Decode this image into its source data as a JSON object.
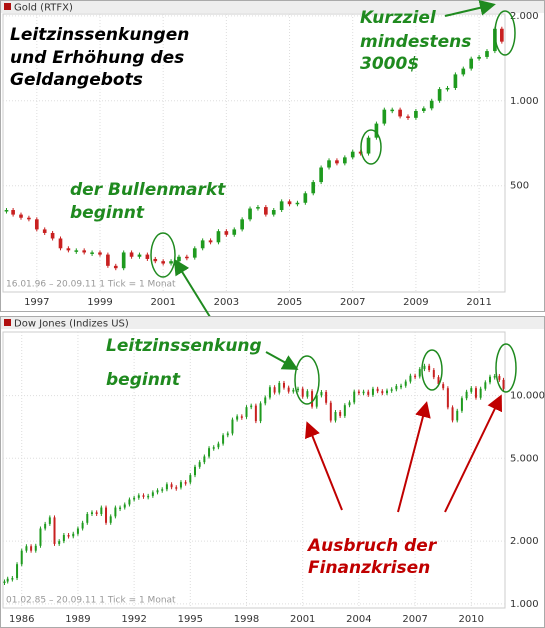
{
  "chart_data": [
    {
      "type": "candlestick",
      "title": "Gold (RTFX)",
      "range_label": "16.01.96 – 20.09.11   1 Tick = 1 Monat",
      "log_y": true,
      "grid": true,
      "up_color": "#1e9a1e",
      "down_color": "#c82020",
      "xlim": [
        1995.93,
        2011.82
      ],
      "xticks": [
        1997,
        1999,
        2001,
        2003,
        2005,
        2007,
        2009,
        2011
      ],
      "ylim": [
        210,
        2030
      ],
      "yticks": [
        {
          "value": 2000,
          "label": "2.000"
        },
        {
          "value": 1000,
          "label": "1.000"
        },
        500
      ],
      "x": [
        1996.04,
        1996.25,
        1996.5,
        1996.75,
        1997,
        1997.25,
        1997.5,
        1997.75,
        1998,
        1998.25,
        1998.5,
        1998.75,
        1999,
        1999.25,
        1999.5,
        1999.75,
        2000,
        2000.25,
        2000.5,
        2000.75,
        2001,
        2001.25,
        2001.5,
        2001.75,
        2002,
        2002.25,
        2002.5,
        2002.75,
        2003,
        2003.25,
        2003.5,
        2003.75,
        2004,
        2004.25,
        2004.5,
        2004.75,
        2005,
        2005.25,
        2005.5,
        2005.75,
        2006,
        2006.25,
        2006.5,
        2006.75,
        2007,
        2007.25,
        2007.5,
        2007.75,
        2008,
        2008.25,
        2008.5,
        2008.75,
        2009,
        2009.25,
        2009.5,
        2009.75,
        2010,
        2010.25,
        2010.5,
        2010.75,
        2011,
        2011.25,
        2011.5,
        2011.72
      ],
      "values": [
        410,
        395,
        385,
        380,
        350,
        340,
        325,
        300,
        295,
        295,
        290,
        290,
        285,
        260,
        255,
        290,
        280,
        285,
        275,
        270,
        265,
        270,
        280,
        278,
        300,
        320,
        315,
        345,
        335,
        350,
        380,
        415,
        420,
        395,
        410,
        440,
        430,
        435,
        470,
        515,
        580,
        615,
        600,
        630,
        660,
        650,
        740,
        830,
        930,
        930,
        880,
        870,
        920,
        940,
        1000,
        1100,
        1110,
        1240,
        1300,
        1410,
        1430,
        1500,
        1800,
        1620
      ],
      "annotations": [
        {
          "text": "Leitzinssenkungen",
          "color": "#000000"
        },
        {
          "text": "und Erhöhung des",
          "color": "#000000"
        },
        {
          "text": "Geldangebots",
          "color": "#000000"
        },
        {
          "text": "der Bullenmarkt",
          "color": "#1f8a1f"
        },
        {
          "text": "beginnt",
          "color": "#1f8a1f"
        },
        {
          "text": "Kurzziel",
          "color": "#1f8a1f"
        },
        {
          "text": "mindestens",
          "color": "#1f8a1f"
        },
        {
          "text": "3000$",
          "color": "#1f8a1f"
        }
      ]
    },
    {
      "type": "candlestick",
      "title": "Dow Jones (Indizes US)",
      "range_label": "01.02.85 – 20.09.11   1 Tick = 1 Monat",
      "log_y": true,
      "grid": true,
      "up_color": "#1e9a1e",
      "down_color": "#c82020",
      "xlim": [
        1985.0,
        2011.8
      ],
      "xticks": [
        1986,
        1989,
        1992,
        1995,
        1998,
        2001,
        2004,
        2007,
        2010
      ],
      "ylim": [
        955,
        20200
      ],
      "yticks": [
        {
          "value": 10000,
          "label": "10.000"
        },
        {
          "value": 5000,
          "label": "5.000"
        },
        {
          "value": 2000,
          "label": "2.000"
        },
        {
          "value": 1000,
          "label": "1.000"
        }
      ],
      "x": [
        1985.08,
        1985.25,
        1985.5,
        1985.75,
        1986,
        1986.25,
        1986.5,
        1986.75,
        1987,
        1987.25,
        1987.5,
        1987.75,
        1988,
        1988.25,
        1988.5,
        1988.75,
        1989,
        1989.25,
        1989.5,
        1989.75,
        1990,
        1990.25,
        1990.5,
        1990.75,
        1991,
        1991.25,
        1991.5,
        1991.75,
        1992,
        1992.25,
        1992.5,
        1992.75,
        1993,
        1993.25,
        1993.5,
        1993.75,
        1994,
        1994.25,
        1994.5,
        1994.75,
        1995,
        1995.25,
        1995.5,
        1995.75,
        1996,
        1996.25,
        1996.5,
        1996.75,
        1997,
        1997.25,
        1997.5,
        1997.75,
        1998,
        1998.25,
        1998.5,
        1998.75,
        1999,
        1999.25,
        1999.5,
        1999.75,
        2000,
        2000.25,
        2000.5,
        2000.75,
        2001,
        2001.25,
        2001.5,
        2001.75,
        2002,
        2002.25,
        2002.5,
        2002.75,
        2003,
        2003.25,
        2003.5,
        2003.75,
        2004,
        2004.25,
        2004.5,
        2004.75,
        2005,
        2005.25,
        2005.5,
        2005.75,
        2006,
        2006.25,
        2006.5,
        2006.75,
        2007,
        2007.25,
        2007.5,
        2007.75,
        2008,
        2008.25,
        2008.5,
        2008.75,
        2009,
        2009.25,
        2009.5,
        2009.75,
        2010,
        2010.25,
        2010.5,
        2010.75,
        2011,
        2011.25,
        2011.5,
        2011.72
      ],
      "values": [
        1280,
        1320,
        1330,
        1550,
        1800,
        1890,
        1800,
        1900,
        2300,
        2420,
        2600,
        1940,
        2000,
        2140,
        2110,
        2170,
        2300,
        2450,
        2700,
        2750,
        2700,
        2900,
        2450,
        2630,
        2900,
        2900,
        3000,
        3170,
        3230,
        3320,
        3270,
        3300,
        3430,
        3510,
        3550,
        3750,
        3630,
        3620,
        3840,
        3830,
        4150,
        4550,
        4790,
        5100,
        5590,
        5650,
        5880,
        6450,
        6580,
        7670,
        7950,
        7900,
        8800,
        8950,
        7540,
        9180,
        9790,
        10970,
        10340,
        11500,
        10920,
        10450,
        10650,
        10790,
        9880,
        10500,
        8850,
        10020,
        10400,
        9240,
        7590,
        8340,
        7990,
        8990,
        9280,
        10450,
        10360,
        10440,
        10080,
        10780,
        10500,
        10270,
        10570,
        10720,
        11110,
        11150,
        11680,
        12460,
        12350,
        13400,
        13900,
        13260,
        12260,
        11350,
        10850,
        8780,
        7600,
        8450,
        9710,
        10430,
        10860,
        9770,
        10790,
        11580,
        12320,
        12410,
        11900,
        10770
      ],
      "annotations": [
        {
          "text": "Leitzinssenkung",
          "color": "#1f8a1f"
        },
        {
          "text": "beginnt",
          "color": "#1f8a1f"
        },
        {
          "text": "Ausbruch der",
          "color": "#c00000"
        },
        {
          "text": "Finanzkrisen",
          "color": "#c00000"
        }
      ]
    }
  ]
}
